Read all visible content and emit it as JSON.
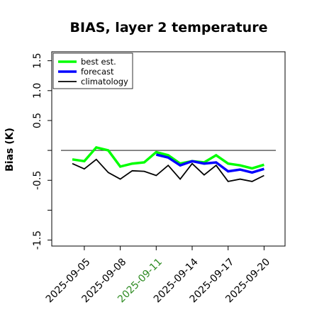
{
  "chart_data": {
    "type": "line",
    "title": "BIAS, layer 2 temperature",
    "ylabel": "Bias (K)",
    "xlabel": "",
    "ylim": [
      -1.6,
      1.65
    ],
    "yticks": [
      {
        "value": -1.5,
        "label": "-1.5"
      },
      {
        "value": -1.0,
        "label": ""
      },
      {
        "value": -0.5,
        "label": "-0.5"
      },
      {
        "value": 0.0,
        "label": ""
      },
      {
        "value": 0.5,
        "label": "0.5"
      },
      {
        "value": 1.0,
        "label": "1.0"
      },
      {
        "value": 1.5,
        "label": "1.5"
      }
    ],
    "xticks": [
      {
        "label": "2025-09-05",
        "color": "#000000"
      },
      {
        "label": "2025-09-08",
        "color": "#000000"
      },
      {
        "label": "2025-09-11",
        "color": "#2e8b22"
      },
      {
        "label": "2025-09-14",
        "color": "#000000"
      },
      {
        "label": "2025-09-17",
        "color": "#000000"
      },
      {
        "label": "2025-09-20",
        "color": "#000000"
      }
    ],
    "x": [
      "2025-09-04",
      "2025-09-05",
      "2025-09-06",
      "2025-09-07",
      "2025-09-08",
      "2025-09-09",
      "2025-09-10",
      "2025-09-11",
      "2025-09-12",
      "2025-09-13",
      "2025-09-14",
      "2025-09-15",
      "2025-09-16",
      "2025-09-17",
      "2025-09-18",
      "2025-09-19",
      "2025-09-20"
    ],
    "zero_line": 0.0,
    "series": [
      {
        "name": "best est.",
        "color": "#00ff00",
        "width": 3.5,
        "x": [
          "2025-09-04",
          "2025-09-05",
          "2025-09-06",
          "2025-09-07",
          "2025-09-08",
          "2025-09-09",
          "2025-09-10",
          "2025-09-11",
          "2025-09-12",
          "2025-09-13",
          "2025-09-14",
          "2025-09-15",
          "2025-09-16",
          "2025-09-17",
          "2025-09-18",
          "2025-09-19",
          "2025-09-20"
        ],
        "values": [
          -0.15,
          -0.18,
          0.05,
          0.0,
          -0.27,
          -0.22,
          -0.2,
          -0.03,
          -0.08,
          -0.22,
          -0.18,
          -0.2,
          -0.08,
          -0.22,
          -0.25,
          -0.3,
          -0.24
        ]
      },
      {
        "name": "forecast",
        "color": "#0000ff",
        "width": 3.5,
        "x": [
          "2025-09-11",
          "2025-09-12",
          "2025-09-13",
          "2025-09-14",
          "2025-09-15",
          "2025-09-16",
          "2025-09-17",
          "2025-09-18",
          "2025-09-19",
          "2025-09-20"
        ],
        "values": [
          -0.07,
          -0.12,
          -0.25,
          -0.18,
          -0.22,
          -0.2,
          -0.35,
          -0.32,
          -0.37,
          -0.31
        ]
      },
      {
        "name": "climatology",
        "color": "#000000",
        "width": 1.8,
        "x": [
          "2025-09-04",
          "2025-09-05",
          "2025-09-06",
          "2025-09-07",
          "2025-09-08",
          "2025-09-09",
          "2025-09-10",
          "2025-09-11",
          "2025-09-12",
          "2025-09-13",
          "2025-09-14",
          "2025-09-15",
          "2025-09-16",
          "2025-09-17",
          "2025-09-18",
          "2025-09-19",
          "2025-09-20"
        ],
        "values": [
          -0.22,
          -0.31,
          -0.15,
          -0.37,
          -0.48,
          -0.34,
          -0.35,
          -0.42,
          -0.25,
          -0.48,
          -0.22,
          -0.41,
          -0.25,
          -0.52,
          -0.48,
          -0.52,
          -0.42
        ]
      }
    ],
    "legend": {
      "placement": "top-left",
      "entries": [
        {
          "label": "best est.",
          "color": "#00ff00"
        },
        {
          "label": "forecast",
          "color": "#0000ff"
        },
        {
          "label": "climatology",
          "color": "#000000"
        }
      ]
    },
    "grid": false
  }
}
